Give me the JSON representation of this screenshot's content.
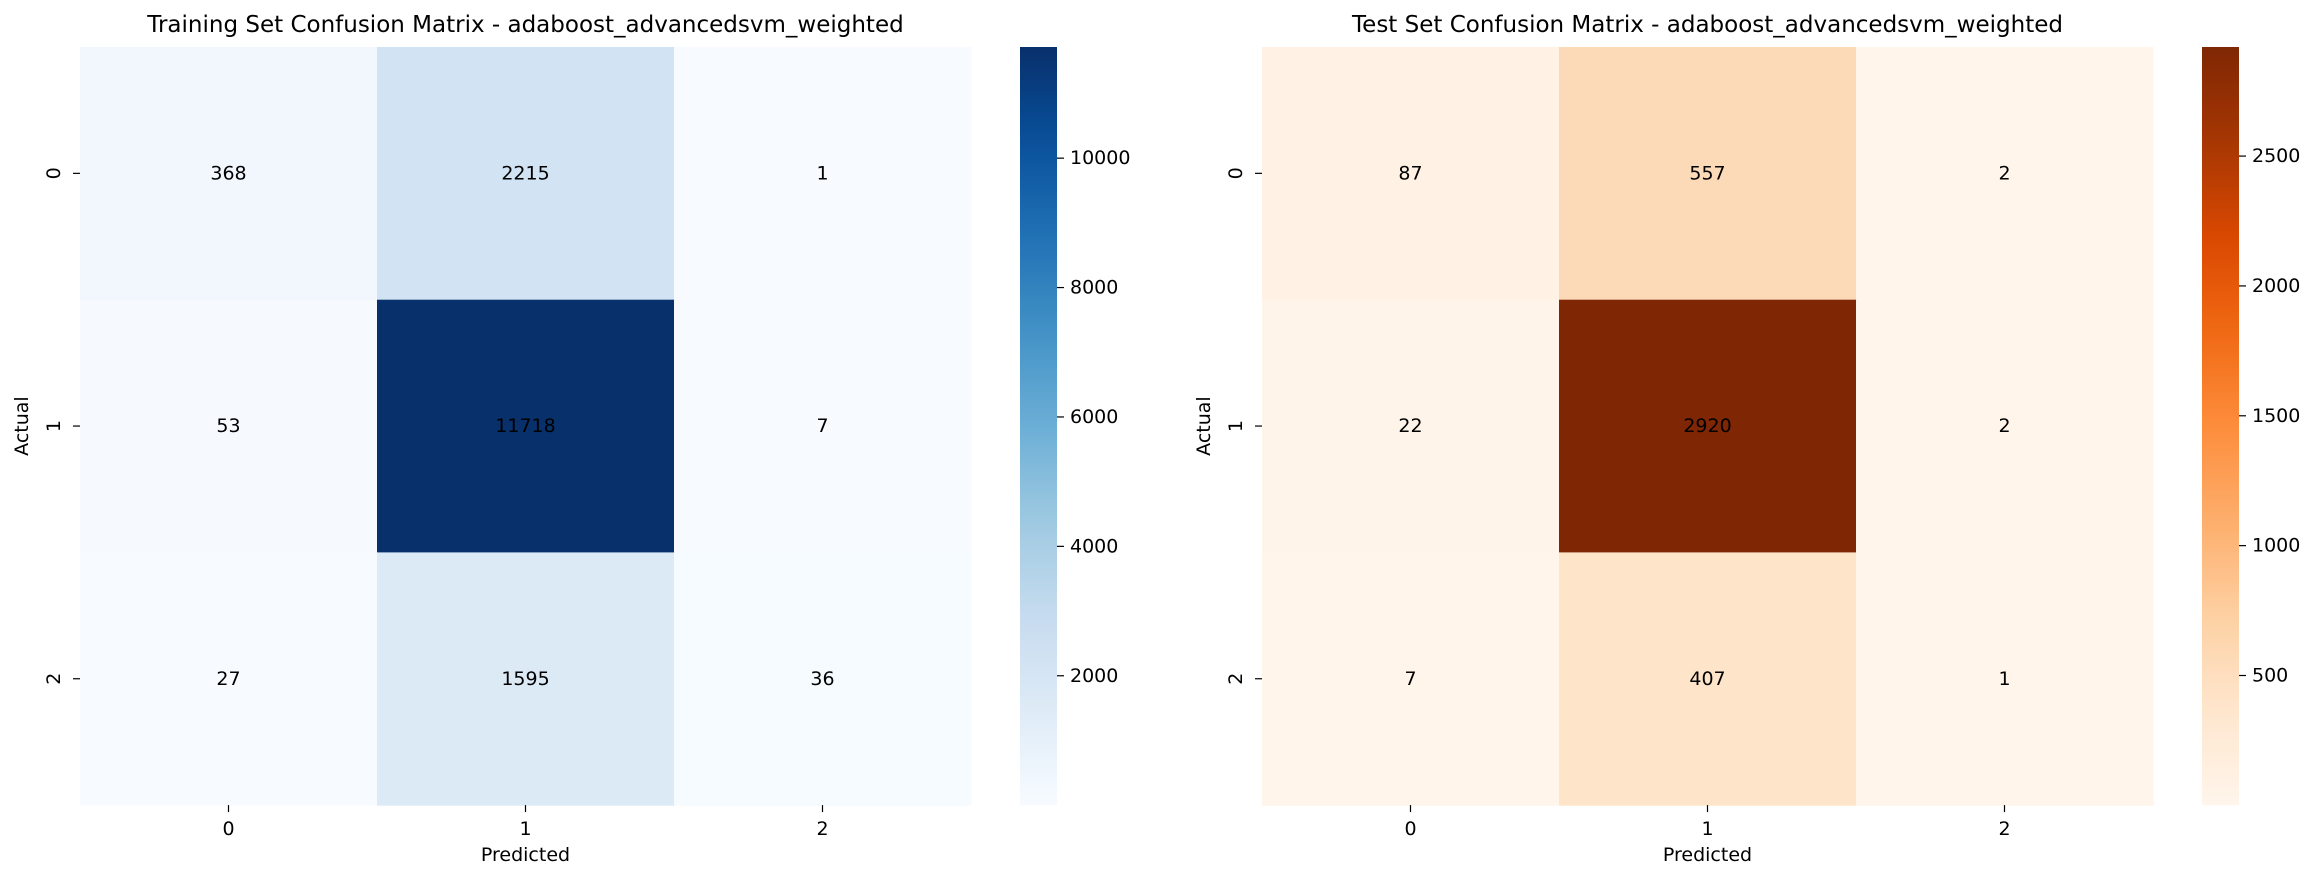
{
  "chart_data": [
    {
      "type": "heatmap",
      "title": "Training Set Confusion Matrix - adaboost_advancedsvm_weighted",
      "xlabel": "Predicted",
      "ylabel": "Actual",
      "x_categories": [
        "0",
        "1",
        "2"
      ],
      "y_categories": [
        "0",
        "1",
        "2"
      ],
      "values": [
        [
          368,
          2215,
          1
        ],
        [
          53,
          11718,
          7
        ],
        [
          27,
          1595,
          36
        ]
      ],
      "colormap": "Blues",
      "colorbar": {
        "min": 1,
        "max": 11718,
        "ticks": [
          2000,
          4000,
          6000,
          8000,
          10000
        ],
        "tick_labels": [
          "2000",
          "4000",
          "6000",
          "8000",
          "10000"
        ]
      }
    },
    {
      "type": "heatmap",
      "title": "Test Set Confusion Matrix - adaboost_advancedsvm_weighted",
      "xlabel": "Predicted",
      "ylabel": "Actual",
      "x_categories": [
        "0",
        "1",
        "2"
      ],
      "y_categories": [
        "0",
        "1",
        "2"
      ],
      "values": [
        [
          87,
          557,
          2
        ],
        [
          22,
          2920,
          2
        ],
        [
          7,
          407,
          1
        ]
      ],
      "colormap": "Oranges",
      "colorbar": {
        "min": 1,
        "max": 2920,
        "ticks": [
          500,
          1000,
          1500,
          2000,
          2500
        ],
        "tick_labels": [
          "500",
          "1000",
          "1500",
          "2000",
          "2500"
        ]
      }
    }
  ]
}
